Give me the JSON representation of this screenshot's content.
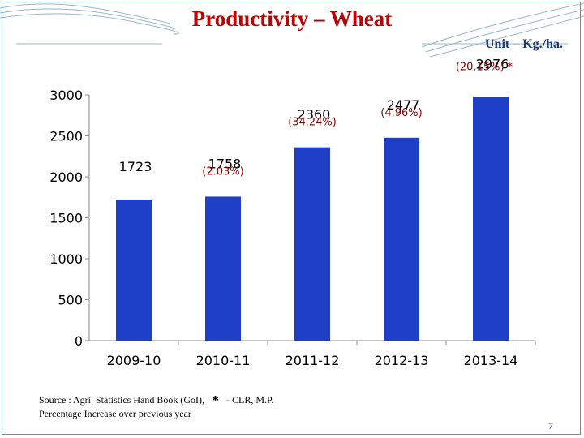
{
  "slide": {
    "title": "Productivity – Wheat",
    "unit": "Unit – Kg./ha.",
    "source_text": "Source  : Agri. Statistics Hand Book (GoI),",
    "source_star": "*",
    "source_suffix": "- CLR, M.P.",
    "note": "Percentage Increase over previous year",
    "page_number": "7"
  },
  "chart_data": {
    "type": "bar",
    "categories": [
      "2009-10",
      "2010-11",
      "2011-12",
      "2012-13",
      "2013-14"
    ],
    "values": [
      1723,
      1758,
      2360,
      2477,
      2976
    ],
    "value_labels": [
      "1723",
      "1758",
      "2360",
      "2477",
      "2976"
    ],
    "percent_labels": [
      "",
      "(2.03%)",
      "(34.24%)",
      "(4.96%)",
      "(20.15%) *"
    ],
    "yticks": [
      0,
      500,
      1000,
      1500,
      2000,
      2500,
      3000
    ],
    "ytick_labels": [
      "0",
      "500",
      "1000",
      "1500",
      "2000",
      "2500",
      "3000"
    ],
    "ylim": [
      0,
      3000
    ],
    "bar_color": "#1f3fc6",
    "label_color": "#000000",
    "percent_color": "#8b0000",
    "grid": false,
    "legend": "none"
  },
  "colors": {
    "title": "#c00000",
    "unit": "#1f3a6e",
    "frame": "#5f8fa8"
  }
}
